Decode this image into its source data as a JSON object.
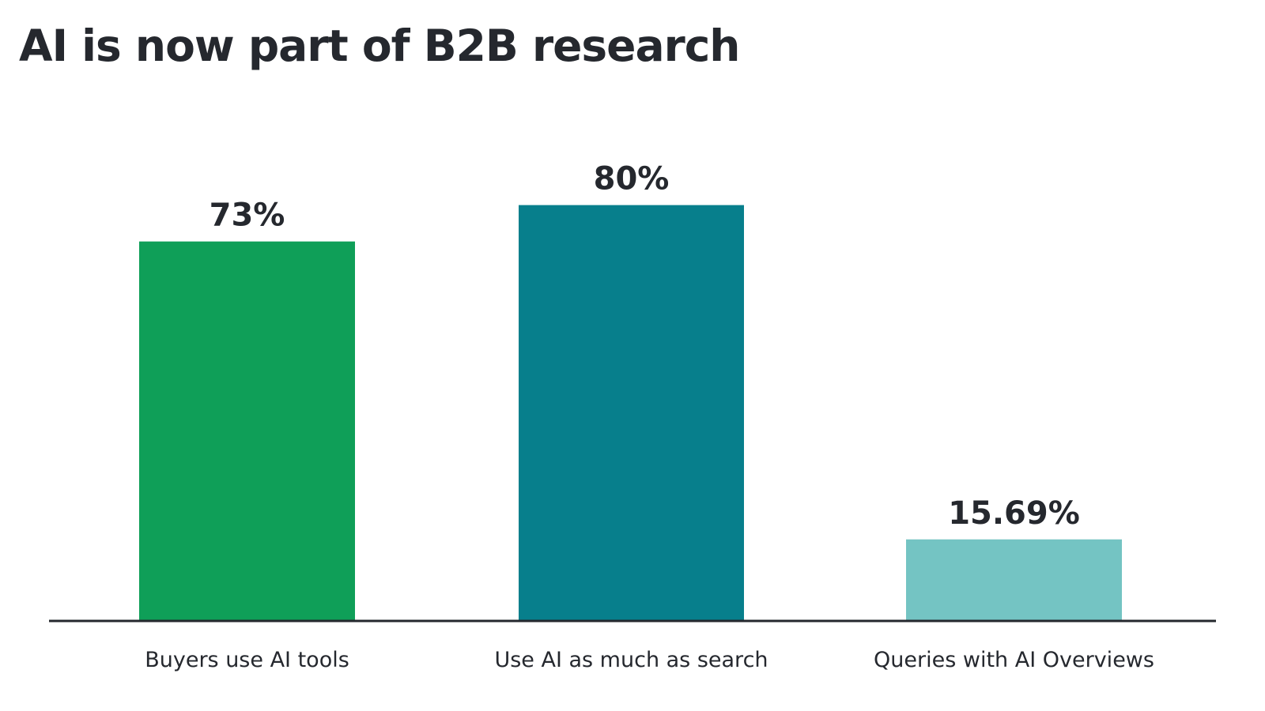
{
  "chart_data": {
    "type": "bar",
    "title": "AI is now part of B2B research",
    "categories": [
      "Buyers use AI tools",
      "Use AI as much as search",
      "Queries with AI Overviews"
    ],
    "values": [
      73,
      80,
      15.69
    ],
    "value_labels": [
      "73%",
      "80%",
      "15.69%"
    ],
    "bar_colors": [
      "#0f9f58",
      "#077f8c",
      "#74c4c3"
    ],
    "axis_color": "#25282e",
    "ylim": [
      0,
      100
    ],
    "xlabel": "",
    "ylabel": "",
    "grid": false,
    "legend": "none"
  }
}
